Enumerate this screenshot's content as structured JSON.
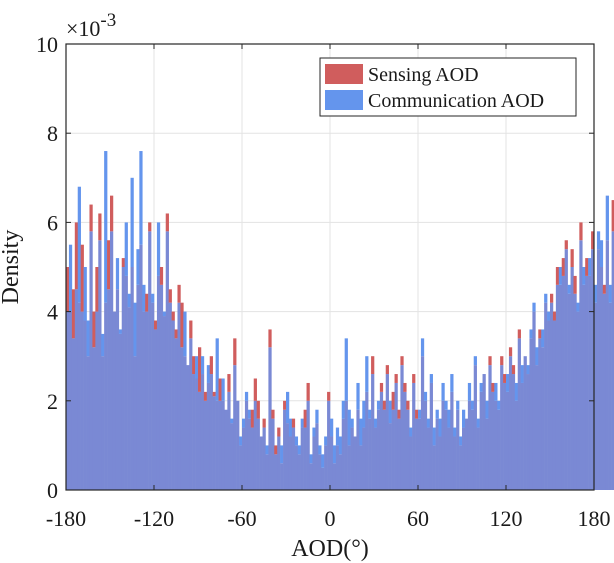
{
  "chart_data": {
    "type": "bar",
    "xlabel": "AOD(°)",
    "ylabel": "Density",
    "xlim": [
      -180,
      180
    ],
    "ylim": [
      0,
      0.01
    ],
    "y_multiplier_text": "×10",
    "y_exponent_text": "-3",
    "x_ticks": [
      -180,
      -120,
      -60,
      0,
      60,
      120,
      180
    ],
    "x_tick_labels": [
      "-180",
      "-120",
      "-60",
      "0",
      "60",
      "120",
      "180"
    ],
    "y_ticks": [
      0,
      0.002,
      0.004,
      0.006,
      0.008,
      0.01
    ],
    "y_tick_labels": [
      "0",
      "2",
      "4",
      "6",
      "8",
      "10"
    ],
    "grid": true,
    "legend_position": "top-right",
    "bin_width_deg": 2,
    "series": [
      {
        "name": "Sensing AOD",
        "color": "#d05d5d",
        "overlap_color": "#7a89d4",
        "values": [
          0.005,
          0.004,
          0.0045,
          0.006,
          0.0042,
          0.0055,
          0.0038,
          0.003,
          0.0064,
          0.004,
          0.005,
          0.0062,
          0.003,
          0.0042,
          0.0056,
          0.0066,
          0.004,
          0.0045,
          0.0035,
          0.0052,
          0.0048,
          0.0041,
          0.005,
          0.003,
          0.0046,
          0.0055,
          0.004,
          0.0044,
          0.006,
          0.0042,
          0.0038,
          0.0048,
          0.005,
          0.0039,
          0.0062,
          0.0045,
          0.004,
          0.0036,
          0.0046,
          0.0042,
          0.003,
          0.0028,
          0.0038,
          0.003,
          0.0025,
          0.0032,
          0.0026,
          0.0022,
          0.0024,
          0.003,
          0.0022,
          0.002,
          0.0025,
          0.002,
          0.0018,
          0.0026,
          0.0015,
          0.0034,
          0.002,
          0.001,
          0.0014,
          0.002,
          0.0016,
          0.0018,
          0.0025,
          0.002,
          0.0012,
          0.0016,
          0.0008,
          0.0036,
          0.0018,
          0.001,
          0.0014,
          0.0006,
          0.002,
          0.0015,
          0.0012,
          0.0016,
          0.001,
          0.0008,
          0.0014,
          0.0018,
          0.0024,
          0.0006,
          0.0012,
          0.0015,
          0.0008,
          0.0005,
          0.001,
          0.0022,
          0.0012,
          0.0006,
          0.001,
          0.0008,
          0.0016,
          0.002,
          0.001,
          0.0014,
          0.0012,
          0.0018,
          0.001,
          0.0014,
          0.0022,
          0.0016,
          0.003,
          0.0014,
          0.0018,
          0.0024,
          0.002,
          0.0028,
          0.0015,
          0.0022,
          0.0026,
          0.0018,
          0.003,
          0.0024,
          0.002,
          0.0012,
          0.0026,
          0.0018,
          0.0016,
          0.003,
          0.002,
          0.0014,
          0.0024,
          0.001,
          0.0016,
          0.0012,
          0.002,
          0.0018,
          0.0014,
          0.0022,
          0.0012,
          0.0018,
          0.001,
          0.0014,
          0.0016,
          0.002,
          0.0018,
          0.0028,
          0.0014,
          0.0022,
          0.0026,
          0.0016,
          0.003,
          0.0024,
          0.002,
          0.0018,
          0.003,
          0.0026,
          0.0022,
          0.0032,
          0.0028,
          0.002,
          0.0036,
          0.0024,
          0.003,
          0.0026,
          0.0034,
          0.004,
          0.0028,
          0.0036,
          0.0032,
          0.0042,
          0.0038,
          0.0044,
          0.004,
          0.005,
          0.0046,
          0.0052,
          0.0056,
          0.0044,
          0.0054,
          0.0048,
          0.004,
          0.006,
          0.0046,
          0.0052,
          0.0048,
          0.0058,
          0.0042,
          0.0054,
          0.005,
          0.0046,
          0.0056,
          0.0042,
          0.0065,
          0.005,
          0.0048,
          0.0044,
          0.0056,
          0.0046,
          0.0052,
          0.005
        ]
      },
      {
        "name": "Communication AOD",
        "color": "#6495ed",
        "overlap_color": "#7a89d4",
        "values": [
          0.004,
          0.0055,
          0.0034,
          0.0045,
          0.0068,
          0.004,
          0.005,
          0.0038,
          0.0058,
          0.0032,
          0.004,
          0.0056,
          0.0035,
          0.0076,
          0.0045,
          0.0058,
          0.004,
          0.0052,
          0.0036,
          0.005,
          0.006,
          0.0044,
          0.007,
          0.0042,
          0.0054,
          0.0076,
          0.0046,
          0.004,
          0.0058,
          0.0044,
          0.0036,
          0.006,
          0.0046,
          0.004,
          0.0058,
          0.0042,
          0.0038,
          0.0034,
          0.0042,
          0.0032,
          0.004,
          0.0028,
          0.0034,
          0.0026,
          0.003,
          0.0022,
          0.003,
          0.002,
          0.0028,
          0.0026,
          0.0021,
          0.0034,
          0.002,
          0.0025,
          0.0018,
          0.0022,
          0.0016,
          0.0028,
          0.002,
          0.0012,
          0.0016,
          0.0022,
          0.0018,
          0.0014,
          0.002,
          0.0016,
          0.0012,
          0.0014,
          0.001,
          0.0032,
          0.0016,
          0.0008,
          0.0012,
          0.001,
          0.0018,
          0.0022,
          0.0016,
          0.0014,
          0.0012,
          0.001,
          0.0016,
          0.0014,
          0.002,
          0.0008,
          0.0014,
          0.0018,
          0.001,
          0.0008,
          0.0012,
          0.002,
          0.0016,
          0.001,
          0.0014,
          0.0012,
          0.002,
          0.0034,
          0.0018,
          0.0016,
          0.0012,
          0.0024,
          0.0016,
          0.002,
          0.003,
          0.0018,
          0.0026,
          0.0016,
          0.002,
          0.0022,
          0.0018,
          0.0026,
          0.002,
          0.0018,
          0.0024,
          0.0016,
          0.0028,
          0.0022,
          0.0018,
          0.0014,
          0.0024,
          0.0016,
          0.0018,
          0.0034,
          0.0022,
          0.0016,
          0.0026,
          0.0014,
          0.0018,
          0.0016,
          0.0024,
          0.002,
          0.0018,
          0.0026,
          0.0014,
          0.002,
          0.0012,
          0.0018,
          0.0016,
          0.0024,
          0.002,
          0.003,
          0.0016,
          0.0024,
          0.0026,
          0.002,
          0.0028,
          0.0022,
          0.0024,
          0.002,
          0.0028,
          0.0024,
          0.0026,
          0.003,
          0.0026,
          0.0024,
          0.0034,
          0.0028,
          0.003,
          0.0028,
          0.0036,
          0.0042,
          0.0032,
          0.0034,
          0.0036,
          0.0044,
          0.004,
          0.0042,
          0.0038,
          0.0046,
          0.005,
          0.0048,
          0.0054,
          0.0046,
          0.005,
          0.0044,
          0.0042,
          0.0056,
          0.005,
          0.0048,
          0.0052,
          0.0054,
          0.0046,
          0.0058,
          0.0056,
          0.0044,
          0.0066,
          0.0046,
          0.0058,
          0.0054,
          0.0044,
          0.0048,
          0.006,
          0.005,
          0.0065,
          0.0048
        ]
      }
    ]
  }
}
